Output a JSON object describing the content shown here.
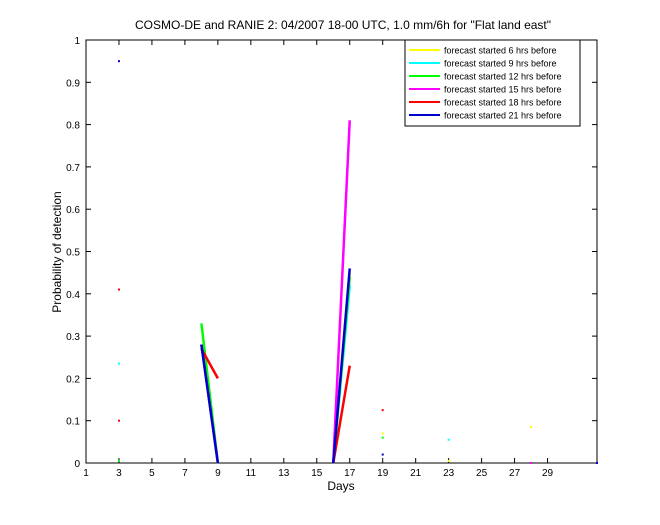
{
  "chart_data": {
    "type": "line",
    "title": "COSMO-DE and RANIE 2: 04/2007 18-00 UTC, 1.0 mm/6h for \"Flat land east\"",
    "xlabel": "Days",
    "ylabel": "Probability of detection",
    "xlim": [
      1,
      31
    ],
    "ylim": [
      0,
      1
    ],
    "xticks": [
      1,
      3,
      5,
      7,
      9,
      11,
      13,
      15,
      17,
      19,
      21,
      23,
      25,
      27,
      29
    ],
    "yticks": [
      0,
      0.1,
      0.2,
      0.3,
      0.4,
      0.5,
      0.6,
      0.7,
      0.8,
      0.9,
      1
    ],
    "ytick_labels": [
      "0",
      "0.1",
      "0.2",
      "0.3",
      "0.4",
      "0.5",
      "0.6",
      "0.7",
      "0.8",
      "0.9",
      "1"
    ],
    "grid": false,
    "legend_position": "top-right",
    "series": [
      {
        "name": "forecast started 6 hrs before",
        "color": "#ffff00",
        "points": [
          [
            8,
            0.28
          ],
          [
            9,
            0
          ],
          [
            16,
            0
          ],
          [
            17,
            0.45
          ],
          [
            19,
            0.07
          ],
          [
            23,
            0.005
          ],
          [
            28,
            0.085
          ]
        ]
      },
      {
        "name": "forecast started 9 hrs before",
        "color": "#00ffff",
        "points": [
          [
            3,
            0.235
          ],
          [
            8,
            0.28
          ],
          [
            9,
            0
          ],
          [
            16,
            0
          ],
          [
            17,
            0.42
          ],
          [
            23,
            0.055
          ]
        ]
      },
      {
        "name": "forecast started 12 hrs before",
        "color": "#00ff00",
        "points": [
          [
            3,
            0.005
          ],
          [
            8,
            0.33
          ],
          [
            9,
            0
          ],
          [
            16,
            0
          ],
          [
            17,
            0.44
          ],
          [
            19,
            0.06
          ]
        ]
      },
      {
        "name": "forecast started 15 hrs before",
        "color": "#ff00ff",
        "points": [
          [
            8,
            0.28
          ],
          [
            9,
            0
          ],
          [
            16,
            0
          ],
          [
            17,
            0.81
          ],
          [
            28,
            0
          ]
        ]
      },
      {
        "name": "forecast started 18 hrs before",
        "color": "#ff0000",
        "points": [
          [
            3,
            0.1
          ],
          [
            3,
            0.41
          ],
          [
            8,
            0.27
          ],
          [
            9,
            0.2
          ],
          [
            16,
            0
          ],
          [
            17,
            0.23
          ],
          [
            19,
            0.125
          ]
        ]
      },
      {
        "name": "forecast started 21 hrs before",
        "color": "#0000cc",
        "points": [
          [
            3,
            0.95
          ],
          [
            8,
            0.28
          ],
          [
            9,
            0
          ],
          [
            16,
            0
          ],
          [
            17,
            0.46
          ],
          [
            19,
            0.02
          ],
          [
            32,
            0
          ]
        ]
      }
    ]
  }
}
